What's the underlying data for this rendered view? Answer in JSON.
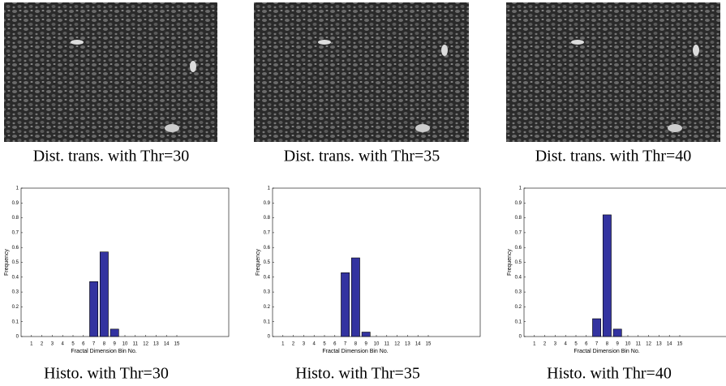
{
  "images": [
    {
      "caption": "Dist. trans. with Thr=30"
    },
    {
      "caption": "Dist. trans. with Thr=35"
    },
    {
      "caption": "Dist. trans. with Thr=40"
    }
  ],
  "chart_data": [
    {
      "type": "bar",
      "caption": "Histo. with Thr=30",
      "xlabel": "Fractal Dimension Bin No.",
      "ylabel": "Frequency",
      "x": [
        1,
        2,
        3,
        4,
        5,
        6,
        7,
        8,
        9,
        10,
        11,
        12,
        13,
        14,
        15
      ],
      "values": [
        0,
        0,
        0,
        0,
        0,
        0,
        0.37,
        0.57,
        0.05,
        0,
        0,
        0,
        0,
        0,
        0
      ],
      "xlim": [
        0,
        20
      ],
      "xticks": [
        1,
        2,
        3,
        4,
        5,
        6,
        7,
        8,
        9,
        10,
        11,
        12,
        13,
        14,
        15
      ],
      "ylim": [
        0,
        1
      ],
      "yticks": [
        0,
        0.1,
        0.2,
        0.3,
        0.4,
        0.5,
        0.6,
        0.7,
        0.8,
        0.9,
        1
      ],
      "color": "#3333a0"
    },
    {
      "type": "bar",
      "caption": "Histo. with Thr=35",
      "xlabel": "Fractal Dimension Bin No.",
      "ylabel": "Frequency",
      "x": [
        1,
        2,
        3,
        4,
        5,
        6,
        7,
        8,
        9,
        10,
        11,
        12,
        13,
        14,
        15
      ],
      "values": [
        0,
        0,
        0,
        0,
        0,
        0,
        0.43,
        0.53,
        0.03,
        0,
        0,
        0,
        0,
        0,
        0
      ],
      "xlim": [
        0,
        20
      ],
      "xticks": [
        1,
        2,
        3,
        4,
        5,
        6,
        7,
        8,
        9,
        10,
        11,
        12,
        13,
        14,
        15
      ],
      "ylim": [
        0,
        1
      ],
      "yticks": [
        0,
        0.1,
        0.2,
        0.3,
        0.4,
        0.5,
        0.6,
        0.7,
        0.8,
        0.9,
        1
      ],
      "color": "#3333a0"
    },
    {
      "type": "bar",
      "caption": "Histo. with Thr=40",
      "xlabel": "Fractal Dimension Bin No.",
      "ylabel": "Frequency",
      "x": [
        1,
        2,
        3,
        4,
        5,
        6,
        7,
        8,
        9,
        10,
        11,
        12,
        13,
        14,
        15
      ],
      "values": [
        0,
        0,
        0,
        0,
        0,
        0,
        0.12,
        0.82,
        0.05,
        0,
        0,
        0,
        0,
        0,
        0
      ],
      "xlim": [
        0,
        20
      ],
      "xticks": [
        1,
        2,
        3,
        4,
        5,
        6,
        7,
        8,
        9,
        10,
        11,
        12,
        13,
        14,
        15
      ],
      "ylim": [
        0,
        1
      ],
      "yticks": [
        0,
        0.1,
        0.2,
        0.3,
        0.4,
        0.5,
        0.6,
        0.7,
        0.8,
        0.9,
        1
      ],
      "color": "#3333a0"
    }
  ]
}
